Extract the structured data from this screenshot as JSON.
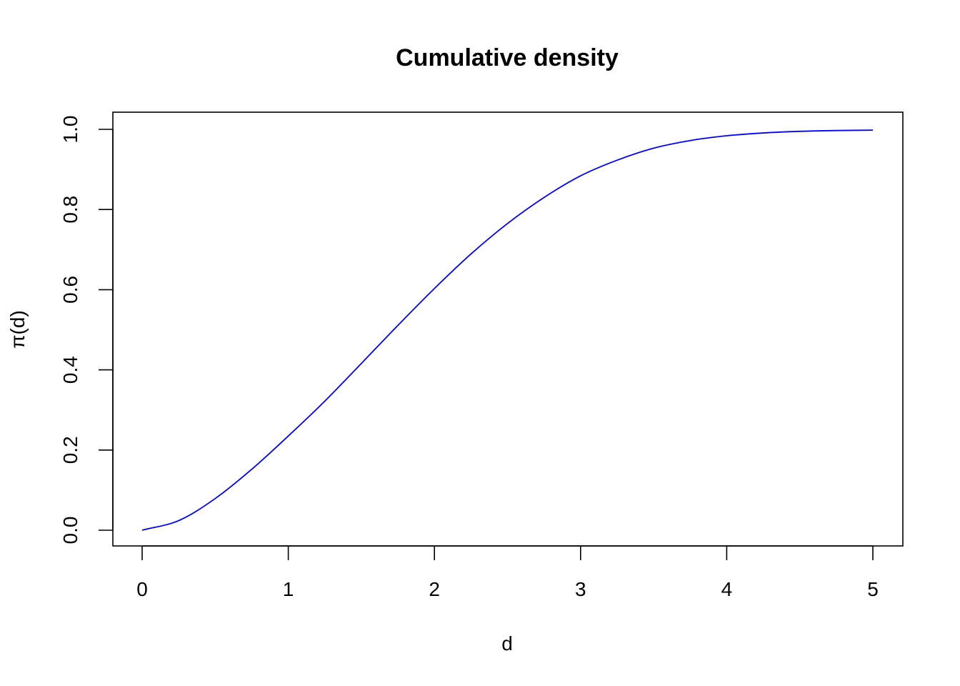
{
  "chart_data": {
    "type": "line",
    "title": "Cumulative density",
    "xlabel": "d",
    "ylabel": "π(d)",
    "xlim": [
      0,
      5
    ],
    "ylim": [
      0,
      1
    ],
    "x_ticks": [
      0,
      1,
      2,
      3,
      4,
      5
    ],
    "x_tick_labels": [
      "0",
      "1",
      "2",
      "3",
      "4",
      "5"
    ],
    "y_ticks": [
      0,
      0.2,
      0.4,
      0.6,
      0.8,
      1.0
    ],
    "y_tick_labels": [
      "0.0",
      "0.2",
      "0.4",
      "0.6",
      "0.8",
      "1.0"
    ],
    "grid": false,
    "series": [
      {
        "color": "#0000ff",
        "x": [
          0,
          0.25,
          0.5,
          0.75,
          1.0,
          1.25,
          1.5,
          1.75,
          2.0,
          2.25,
          2.5,
          2.75,
          3.0,
          3.25,
          3.5,
          3.75,
          4.0,
          4.25,
          4.5,
          4.75,
          5.0
        ],
        "y": [
          0,
          0.024,
          0.079,
          0.152,
          0.235,
          0.322,
          0.416,
          0.511,
          0.603,
          0.689,
          0.765,
          0.83,
          0.884,
          0.923,
          0.953,
          0.972,
          0.984,
          0.991,
          0.995,
          0.997,
          0.998
        ]
      }
    ]
  }
}
